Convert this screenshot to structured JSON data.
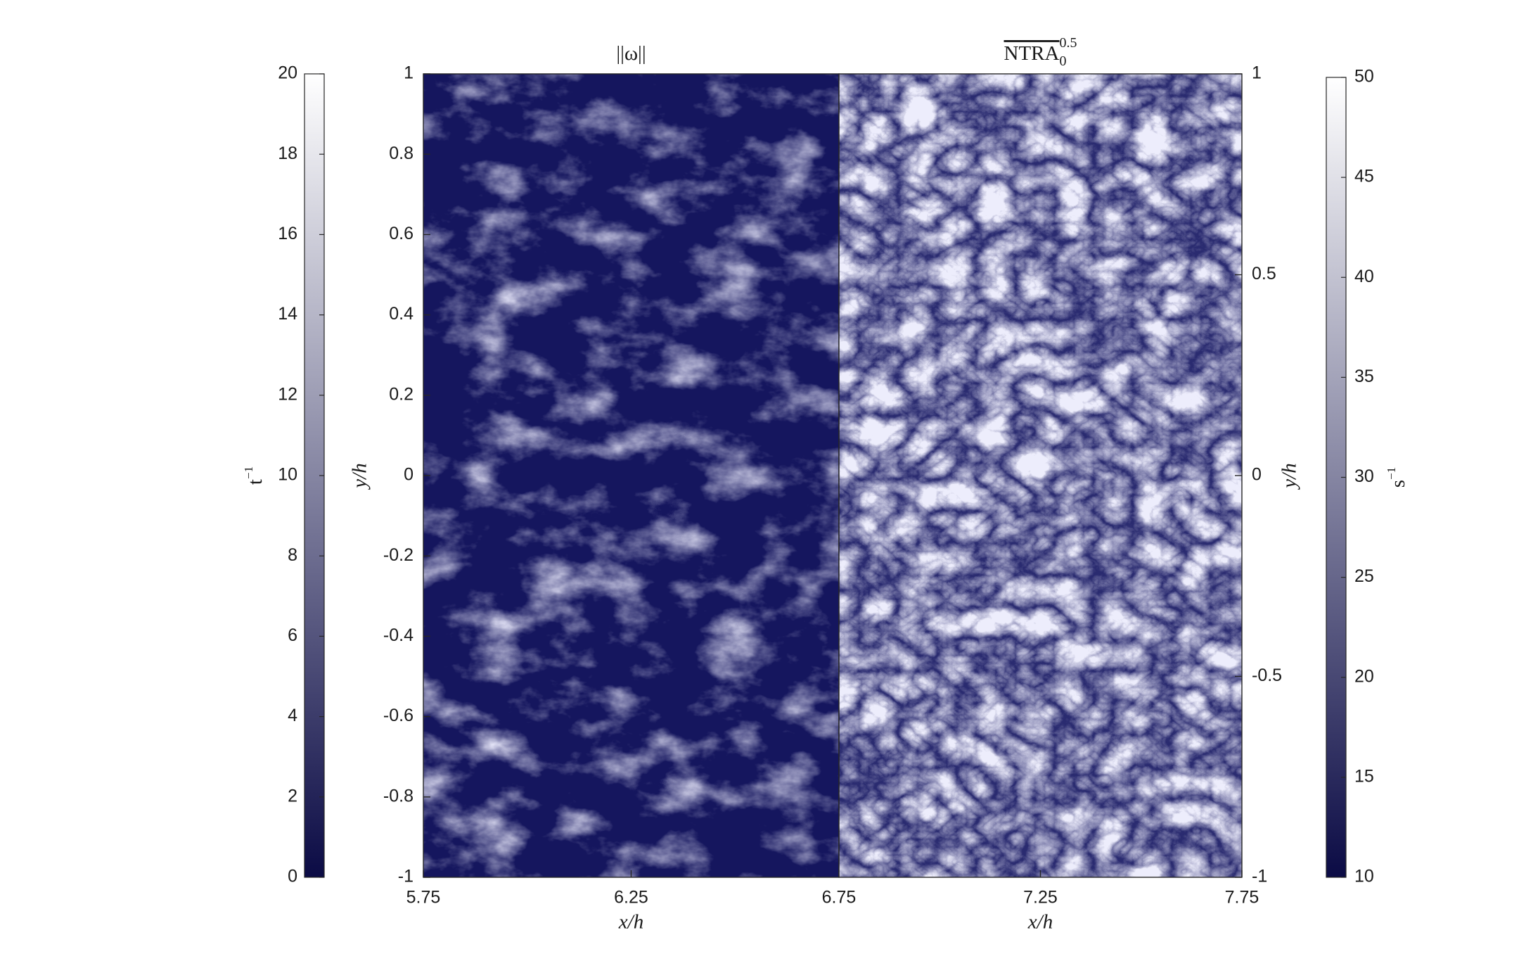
{
  "chart_data": [
    {
      "type": "heatmap",
      "title": "||ω||",
      "xlabel": "x/h",
      "ylabel": "y/h",
      "xlim": [
        5.75,
        6.75
      ],
      "xticks": [
        5.75,
        6.25,
        6.75
      ],
      "ylim": [
        -1,
        1
      ],
      "yticks": [
        -1,
        -0.8,
        -0.6,
        -0.4,
        -0.2,
        0,
        0.2,
        0.4,
        0.6,
        0.8,
        1
      ],
      "yaxis_side": "left",
      "colormap": [
        "#0b0b45",
        "#ffffff"
      ],
      "colorbar": {
        "lim": [
          0,
          20
        ],
        "ticks": [
          0,
          2,
          4,
          6,
          8,
          10,
          12,
          14,
          16,
          18,
          20
        ],
        "label": "t",
        "label_superscript": "−1",
        "side": "left"
      }
    },
    {
      "type": "heatmap",
      "title": "NTRA",
      "title_subscript": "0",
      "title_superscript": "0.5",
      "xlabel": "x/h",
      "ylabel": "y/h",
      "xlim": [
        6.75,
        7.75
      ],
      "xticks": [
        7.25,
        7.75
      ],
      "ylim": [
        -1,
        1
      ],
      "yticks": [
        -1,
        -0.5,
        0,
        0.5,
        1
      ],
      "yaxis_side": "right",
      "colormap": [
        "#0b0b45",
        "#ffffff"
      ],
      "colorbar": {
        "lim": [
          10,
          50
        ],
        "ticks": [
          10,
          15,
          20,
          25,
          30,
          35,
          40,
          45,
          50
        ],
        "label": "s",
        "label_superscript": "−1",
        "side": "right"
      }
    }
  ]
}
